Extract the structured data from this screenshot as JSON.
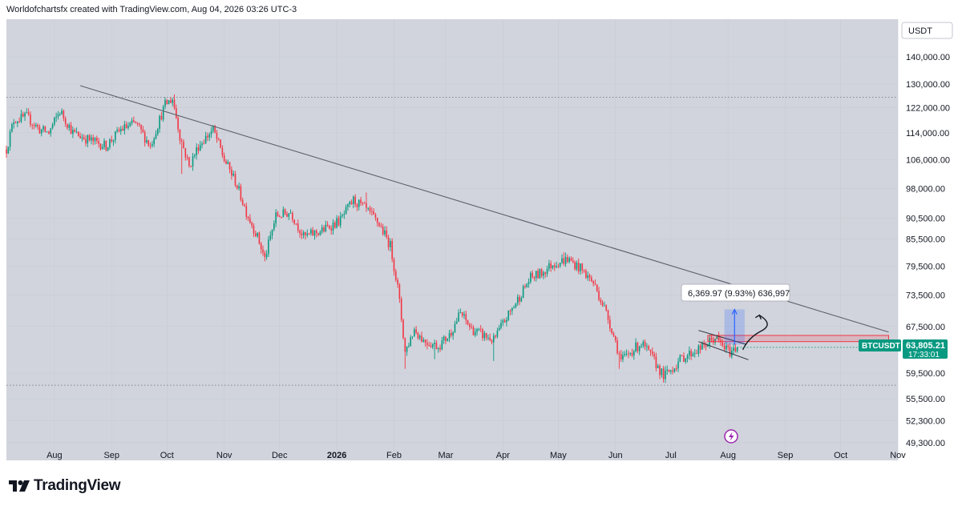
{
  "header": {
    "attribution": "Worldofchartsfx created with TradingView.com, Aug 04, 2026 03:26 UTC-3"
  },
  "currency_label": "USDT",
  "price_badge": {
    "symbol": "BTCUSDT",
    "price": "63,805.21",
    "countdown": "17:33:01",
    "color": "#089981"
  },
  "measure_tooltip": {
    "text": "6,369.97 (9.93%) 636,997"
  },
  "footer": {
    "brand": "TradingView"
  },
  "colors": {
    "up": "#089981",
    "down": "#f23645",
    "background": "#d1d4dc",
    "trendline": "#5d606b",
    "measure": "#2962ff",
    "flash": "#9c27b0"
  },
  "icons": [
    "tradingview-logo-icon",
    "flash-icon"
  ],
  "chart_data": {
    "type": "candlestick",
    "symbol": "BTCUSDT",
    "y_scale": "log",
    "ylim": [
      47000,
      155000
    ],
    "y_ticks": [
      {
        "value": 140000,
        "label": "140,000.00"
      },
      {
        "value": 130000,
        "label": "130,000.00"
      },
      {
        "value": 122000,
        "label": "122,000.00"
      },
      {
        "value": 114000,
        "label": "114,000.00"
      },
      {
        "value": 106000,
        "label": "106,000.00"
      },
      {
        "value": 98000,
        "label": "98,000.00"
      },
      {
        "value": 90500,
        "label": "90,500.00"
      },
      {
        "value": 85500,
        "label": "85,500.00"
      },
      {
        "value": 79500,
        "label": "79,500.00"
      },
      {
        "value": 73500,
        "label": "73,500.00"
      },
      {
        "value": 67500,
        "label": "67,500.00"
      },
      {
        "value": 59500,
        "label": "59,500.00"
      },
      {
        "value": 55500,
        "label": "55,500.00"
      },
      {
        "value": 52300,
        "label": "52,300.00"
      },
      {
        "value": 49300,
        "label": "49,300.00"
      }
    ],
    "x_ticks": [
      {
        "day": 0,
        "label": "Aug",
        "bold": false
      },
      {
        "day": 31,
        "label": "Sep",
        "bold": false
      },
      {
        "day": 61,
        "label": "Oct",
        "bold": false
      },
      {
        "day": 92,
        "label": "Nov",
        "bold": false
      },
      {
        "day": 122,
        "label": "Dec",
        "bold": false
      },
      {
        "day": 153,
        "label": "2026",
        "bold": true
      },
      {
        "day": 184,
        "label": "Feb",
        "bold": false
      },
      {
        "day": 212,
        "label": "Mar",
        "bold": false
      },
      {
        "day": 243,
        "label": "Apr",
        "bold": false
      },
      {
        "day": 273,
        "label": "May",
        "bold": false
      },
      {
        "day": 304,
        "label": "Jun",
        "bold": false
      },
      {
        "day": 334,
        "label": "Jul",
        "bold": false
      },
      {
        "day": 365,
        "label": "Aug",
        "bold": false
      },
      {
        "day": 396,
        "label": "Sep",
        "bold": false
      },
      {
        "day": 426,
        "label": "Oct",
        "bold": false
      },
      {
        "day": 457,
        "label": "Nov",
        "bold": false
      }
    ],
    "x_domain_days": [
      -26,
      457
    ],
    "price_path_anchors": [
      [
        -26,
        109000
      ],
      [
        -22,
        118000
      ],
      [
        -15,
        119000
      ],
      [
        -8,
        115000
      ],
      [
        -3,
        114000
      ],
      [
        3,
        121000
      ],
      [
        10,
        114000
      ],
      [
        18,
        112000
      ],
      [
        28,
        110000
      ],
      [
        36,
        115000
      ],
      [
        44,
        117000
      ],
      [
        52,
        110000
      ],
      [
        60,
        123000
      ],
      [
        64,
        125000
      ],
      [
        68,
        113000
      ],
      [
        73,
        104000
      ],
      [
        78,
        110000
      ],
      [
        86,
        115000
      ],
      [
        92,
        106000
      ],
      [
        98,
        100000
      ],
      [
        104,
        92000
      ],
      [
        110,
        86000
      ],
      [
        114,
        81000
      ],
      [
        120,
        91000
      ],
      [
        128,
        92000
      ],
      [
        135,
        86000
      ],
      [
        145,
        87500
      ],
      [
        155,
        90000
      ],
      [
        162,
        95000
      ],
      [
        168,
        93000
      ],
      [
        176,
        89000
      ],
      [
        182,
        84000
      ],
      [
        186,
        75000
      ],
      [
        190,
        63000
      ],
      [
        195,
        67000
      ],
      [
        200,
        65000
      ],
      [
        208,
        64000
      ],
      [
        214,
        66000
      ],
      [
        220,
        70000
      ],
      [
        226,
        67000
      ],
      [
        232,
        66000
      ],
      [
        238,
        65000
      ],
      [
        243,
        68000
      ],
      [
        250,
        72000
      ],
      [
        258,
        77000
      ],
      [
        264,
        78000
      ],
      [
        270,
        80000
      ],
      [
        278,
        81000
      ],
      [
        285,
        79000
      ],
      [
        292,
        76000
      ],
      [
        298,
        71000
      ],
      [
        302,
        67000
      ],
      [
        307,
        61500
      ],
      [
        312,
        63000
      ],
      [
        318,
        64500
      ],
      [
        324,
        62000
      ],
      [
        330,
        59000
      ],
      [
        334,
        60000
      ],
      [
        340,
        62000
      ],
      [
        346,
        63000
      ],
      [
        352,
        64000
      ],
      [
        358,
        65500
      ],
      [
        362,
        64000
      ],
      [
        366,
        63000
      ],
      [
        370,
        63805
      ]
    ],
    "wick_spikes": [
      [
        69,
        102000,
        "low"
      ],
      [
        114,
        80500,
        "low"
      ],
      [
        190,
        60200,
        "low"
      ],
      [
        206,
        61800,
        "low"
      ],
      [
        238,
        61500,
        "low"
      ],
      [
        306,
        60200,
        "low"
      ],
      [
        330,
        58500,
        "low"
      ],
      [
        65,
        126500,
        "high"
      ],
      [
        169,
        97000,
        "high"
      ],
      [
        276,
        82500,
        "high"
      ]
    ],
    "last_price": 63805.21,
    "dotted_levels": [
      125500,
      57600
    ],
    "annotations": {
      "descending_trendline": {
        "from": [
          14,
          129500
        ],
        "to": [
          452,
          66500
        ]
      },
      "resistance_box": {
        "x0": 354,
        "x1": 452,
        "y_top": 65900,
        "y_bottom": 64800
      },
      "wedge_upper": {
        "from": [
          349,
          66800
        ],
        "to": [
          375,
          64300
        ]
      },
      "wedge_lower": {
        "from": [
          349,
          64800
        ],
        "to": [
          376,
          61700
        ]
      },
      "measure_range": {
        "x0": 363,
        "x1": 374,
        "from": 64300,
        "to": 70700,
        "change": 6369.97,
        "percent": 9.93
      },
      "forecast_arrow": [
        [
          373,
          63400
        ],
        [
          376,
          65500
        ],
        [
          383,
          66700
        ],
        [
          382,
          69600
        ]
      ]
    }
  }
}
